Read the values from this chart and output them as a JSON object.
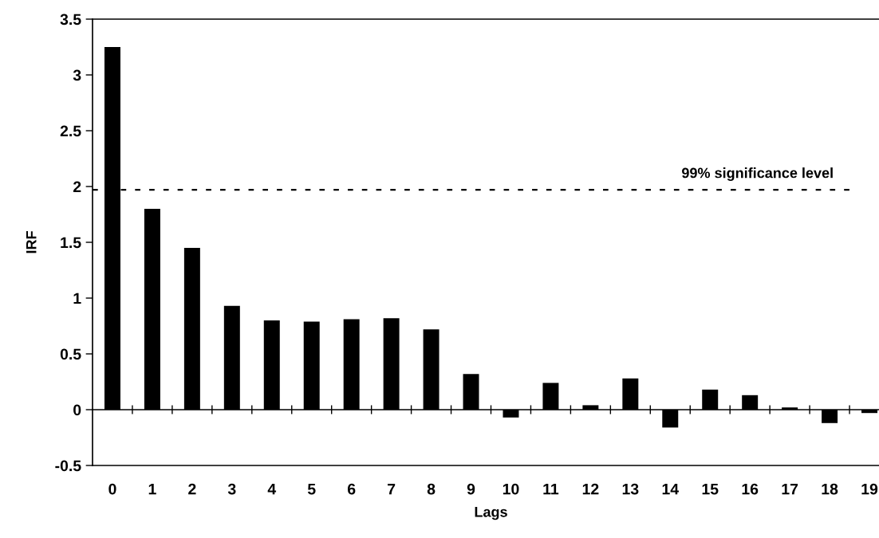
{
  "chart_data": {
    "type": "bar",
    "xlabel": "Lags",
    "ylabel": "IRF",
    "categories": [
      "0",
      "1",
      "2",
      "3",
      "4",
      "5",
      "6",
      "7",
      "8",
      "9",
      "10",
      "11",
      "12",
      "13",
      "14",
      "15",
      "16",
      "17",
      "18",
      "19"
    ],
    "values": [
      3.25,
      1.8,
      1.45,
      0.93,
      0.8,
      0.79,
      0.81,
      0.82,
      0.72,
      0.32,
      -0.07,
      0.24,
      0.04,
      0.28,
      -0.16,
      0.18,
      0.13,
      0.02,
      -0.12,
      -0.03
    ],
    "color": "#000000",
    "ylim": [
      -0.5,
      3.5
    ],
    "yticks": [
      -0.5,
      0,
      0.5,
      1,
      1.5,
      2,
      2.5,
      3,
      3.5
    ],
    "ref_lines": [
      {
        "axis": "y",
        "value": 1.97,
        "label": "99% significance level",
        "color": "#000000",
        "line_style": "dotted"
      }
    ],
    "legend": false
  }
}
